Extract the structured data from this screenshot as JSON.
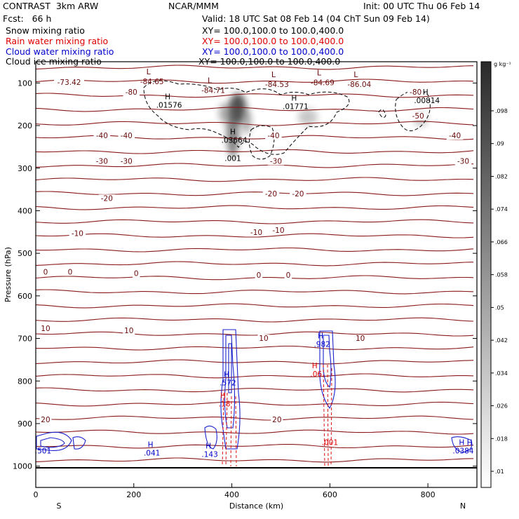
{
  "header": {
    "model_name": "CONTRAST",
    "model_res": "3km ARW",
    "institution": "NCAR/MMM",
    "init_time": "Init: 00 UTC Thu 06 Feb 14",
    "fcst_label": "Fcst:",
    "fcst_value": "66 h",
    "valid_time": "Valid: 18 UTC Sat 08 Feb 14 (04 ChT Sun 09 Feb 14)"
  },
  "fields": [
    {
      "name": "Snow mixing ratio",
      "xy": "XY= 100.0,100.0 to 100.0,400.0",
      "color": "#000000"
    },
    {
      "name": "Rain water mixing ratio",
      "xy": "XY= 100.0,100.0 to 100.0,400.0",
      "color": "#e00000"
    },
    {
      "name": "Cloud water mixing ratio",
      "xy": "XY= 100.0,100.0 to 100.0,400.0",
      "color": "#0000cc"
    },
    {
      "name": "Cloud ice mixing ratio",
      "xy": "XY= 100.0,100.0 to 100.0,400.0",
      "color": "#000000"
    }
  ],
  "chart_data": {
    "type": "contour",
    "xlabel": "Distance (km)",
    "ylabel": "Pressure (hPa)",
    "xlim": [
      0,
      900
    ],
    "ylim": [
      1050,
      50
    ],
    "x_ticks": [
      0,
      200,
      400,
      600,
      800
    ],
    "y_ticks": [
      100,
      200,
      300,
      400,
      500,
      600,
      700,
      800,
      900,
      1000
    ],
    "x_end_labels": {
      "left": "S",
      "right": "N"
    },
    "colorbar": {
      "unit": "g kg⁻¹",
      "ticks": [
        ".01",
        ".018",
        ".026",
        ".034",
        ".042",
        ".05",
        ".058",
        ".066",
        ".074",
        ".082",
        ".09",
        ".098"
      ]
    },
    "temperature_labels": [
      {
        "x": 68,
        "p": 103,
        "text": "-73.42"
      },
      {
        "x": 195,
        "p": 126,
        "text": "-80"
      },
      {
        "x": 775,
        "p": 126,
        "text": "-80"
      },
      {
        "x": 780,
        "p": 182,
        "text": "-50"
      },
      {
        "x": 135,
        "p": 228,
        "text": "-40"
      },
      {
        "x": 185,
        "p": 228,
        "text": "-40"
      },
      {
        "x": 485,
        "p": 228,
        "text": "-40"
      },
      {
        "x": 855,
        "p": 228,
        "text": "-40"
      },
      {
        "x": 135,
        "p": 288,
        "text": "-30"
      },
      {
        "x": 185,
        "p": 288,
        "text": "-30"
      },
      {
        "x": 490,
        "p": 288,
        "text": "-30"
      },
      {
        "x": 872,
        "p": 288,
        "text": "-30"
      },
      {
        "x": 145,
        "p": 375,
        "text": "-20"
      },
      {
        "x": 480,
        "p": 365,
        "text": "-20"
      },
      {
        "x": 535,
        "p": 365,
        "text": "-20"
      },
      {
        "x": 85,
        "p": 458,
        "text": "-10"
      },
      {
        "x": 450,
        "p": 455,
        "text": "-10"
      },
      {
        "x": 495,
        "p": 450,
        "text": "-10"
      },
      {
        "x": 20,
        "p": 548,
        "text": "0"
      },
      {
        "x": 70,
        "p": 548,
        "text": "0"
      },
      {
        "x": 205,
        "p": 552,
        "text": "0"
      },
      {
        "x": 455,
        "p": 556,
        "text": "0"
      },
      {
        "x": 515,
        "p": 556,
        "text": "0"
      },
      {
        "x": 20,
        "p": 681,
        "text": "10"
      },
      {
        "x": 190,
        "p": 686,
        "text": "10"
      },
      {
        "x": 465,
        "p": 704,
        "text": "10"
      },
      {
        "x": 662,
        "p": 704,
        "text": "10"
      },
      {
        "x": 20,
        "p": 895,
        "text": "20"
      },
      {
        "x": 492,
        "p": 895,
        "text": "20"
      }
    ],
    "low_markers": [
      {
        "x": 237,
        "p": 80,
        "tag": "L",
        "text": "-84.65"
      },
      {
        "x": 362,
        "p": 100,
        "tag": "L",
        "text": "-84.71"
      },
      {
        "x": 492,
        "p": 86,
        "tag": "L",
        "text": "-84.53"
      },
      {
        "x": 585,
        "p": 82,
        "tag": "L",
        "text": "-84.69"
      },
      {
        "x": 660,
        "p": 86,
        "tag": "L",
        "text": "-86.04"
      }
    ],
    "high_markers": [
      {
        "x": 272,
        "p": 158,
        "tag": "H",
        "text": ".01576",
        "color": "#000000"
      },
      {
        "x": 530,
        "p": 161,
        "tag": "H",
        "text": ".01771",
        "color": "#000000"
      },
      {
        "x": 798,
        "p": 147,
        "tag": "H",
        "text": ".00814",
        "color": "#000000"
      },
      {
        "x": 405,
        "p": 240,
        "tag": "H",
        "text": ".03664",
        "color": "#000000"
      },
      {
        "x": 402,
        "p": 283,
        "tag": "",
        "text": ".001",
        "color": "#000000"
      },
      {
        "x": 237,
        "p": 975,
        "tag": "H",
        "text": ".041",
        "color": "#0000cc"
      },
      {
        "x": 355,
        "p": 978,
        "tag": "H",
        "text": ".143",
        "color": "#0000cc"
      },
      {
        "x": 392,
        "p": 810,
        "tag": "H",
        "text": ".572",
        "color": "#0000cc"
      },
      {
        "x": 584,
        "p": 720,
        "tag": "H",
        "text": ".982",
        "color": "#0000cc"
      },
      {
        "x": 572,
        "p": 790,
        "tag": "H",
        "text": ".06",
        "color": "#e00000"
      },
      {
        "x": 385,
        "p": 860,
        "tag": "H",
        "text": ".18",
        "color": "#e00000"
      },
      {
        "x": 600,
        "p": 950,
        "tag": "",
        "text": ".001",
        "color": "#e00000"
      },
      {
        "x": 15,
        "p": 970,
        "tag": "",
        "text": ".501",
        "color": "#0000cc"
      },
      {
        "x": 872,
        "p": 970,
        "tag": "H H",
        "text": ".0384",
        "color": "#0000cc"
      }
    ]
  }
}
